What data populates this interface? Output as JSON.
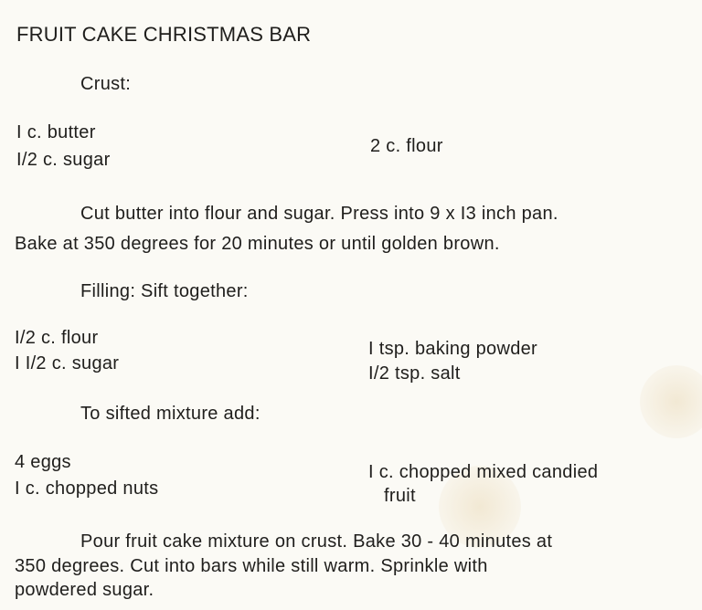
{
  "title": "FRUIT CAKE CHRISTMAS BAR",
  "crust": {
    "heading": "Crust:",
    "ingredients_left": [
      "I c. butter",
      "I/2 c. sugar"
    ],
    "ingredients_right": [
      "2 c. flour"
    ],
    "instructions": [
      "Cut butter into flour and sugar.  Press into 9 x I3 inch pan.",
      "Bake at 350 degrees for 20 minutes or until golden brown."
    ]
  },
  "filling": {
    "heading": "Filling:  Sift together:",
    "ingredients_left": [
      "I/2 c. flour",
      "I I/2 c. sugar"
    ],
    "ingredients_right": [
      "I tsp. baking powder",
      "I/2 tsp. salt"
    ]
  },
  "additions": {
    "heading": "To sifted mixture add:",
    "ingredients_left": [
      "4 eggs",
      "I c. chopped nuts"
    ],
    "ingredients_right": [
      "I c. chopped mixed candied",
      "fruit"
    ]
  },
  "final_instructions": [
    "Pour fruit cake mixture on crust.  Bake 30 - 40 minutes at",
    "350 degrees.  Cut into bars while still warm.  Sprinkle with",
    "powdered sugar."
  ]
}
